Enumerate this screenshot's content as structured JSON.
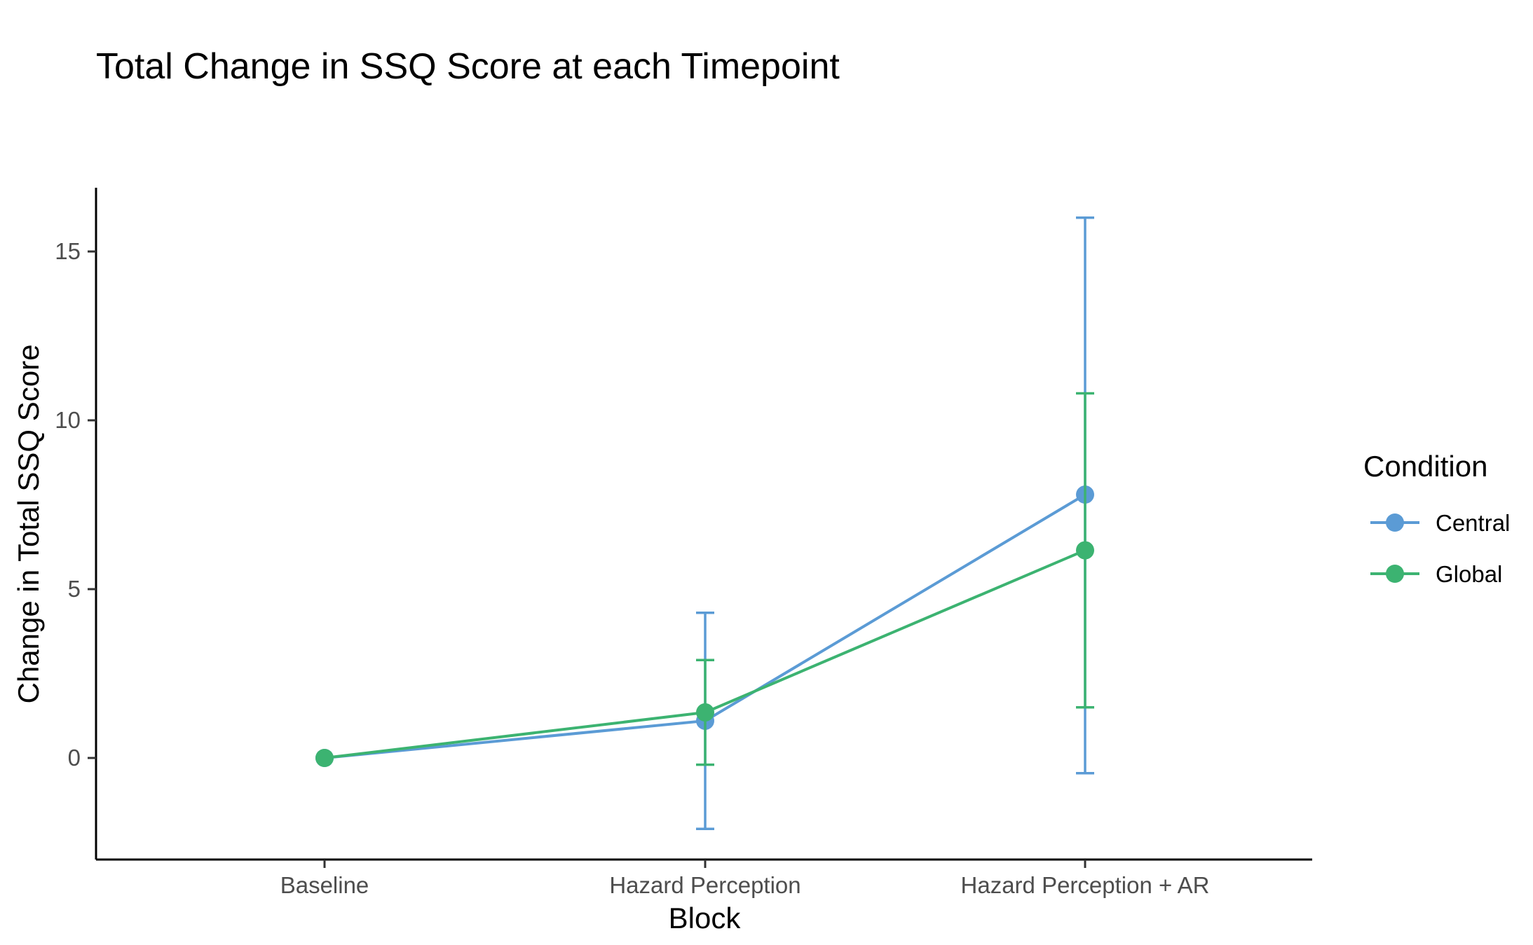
{
  "chart_data": {
    "type": "line",
    "title": "Total Change in SSQ Score at each Timepoint",
    "xlabel": "Block",
    "ylabel": "Change in Total SSQ Score",
    "categories": [
      "Baseline",
      "Hazard Perception",
      "Hazard Perception + AR"
    ],
    "ylim": [
      -3,
      17
    ],
    "yticks": [
      0,
      5,
      10,
      15
    ],
    "grid": false,
    "legend": {
      "title": "Condition",
      "position": "right"
    },
    "series": [
      {
        "name": "Central",
        "color": "#5B9BD5",
        "values": [
          0,
          1.1,
          7.8
        ],
        "error_low": [
          null,
          -2.1,
          -0.45
        ],
        "error_high": [
          null,
          4.3,
          16.0
        ]
      },
      {
        "name": "Global",
        "color": "#3CB371",
        "values": [
          0,
          1.35,
          6.15
        ],
        "error_low": [
          null,
          -0.2,
          1.5
        ],
        "error_high": [
          null,
          2.9,
          10.8
        ]
      }
    ]
  }
}
